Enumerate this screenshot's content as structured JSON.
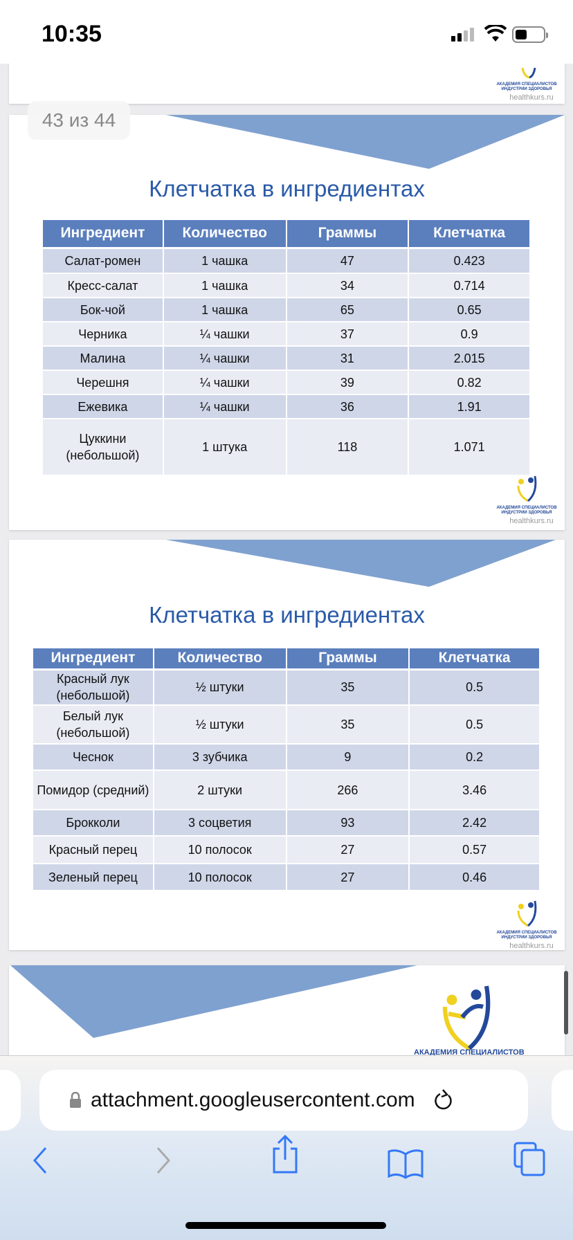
{
  "status_bar": {
    "time": "10:35"
  },
  "viewer": {
    "page_counter": "43 из 44"
  },
  "logo": {
    "line1": "АКАДЕМИЯ СПЕЦИАЛИСТОВ",
    "line2": "ИНДУСТРИИ ЗДОРОВЬЯ",
    "site": "healthkurs.ru"
  },
  "slides": [
    {
      "title": "Клетчатка в ингредиентах",
      "headers": [
        "Ингредиент",
        "Количество",
        "Граммы",
        "Клетчатка"
      ],
      "rows": [
        [
          "Салат-ромен",
          "1 чашка",
          "47",
          "0.423"
        ],
        [
          "Кресс-салат",
          "1 чашка",
          "34",
          "0.714"
        ],
        [
          "Бок-чой",
          "1 чашка",
          "65",
          "0.65"
        ],
        [
          "Черника",
          "¼ чашки",
          "37",
          "0.9"
        ],
        [
          "Малина",
          "¼ чашки",
          "31",
          "2.015"
        ],
        [
          "Черешня",
          "¼ чашки",
          "39",
          "0.82"
        ],
        [
          "Ежевика",
          "¼ чашки",
          "36",
          "1.91"
        ],
        [
          "Цуккини (небольшой)",
          "1 штука",
          "118",
          "1.071"
        ]
      ]
    },
    {
      "title": "Клетчатка в ингредиентах",
      "headers": [
        "Ингредиент",
        "Количество",
        "Граммы",
        "Клетчатка"
      ],
      "rows": [
        [
          "Красный лук (небольшой)",
          "½ штуки",
          "35",
          "0.5"
        ],
        [
          "Белый лук (небольшой)",
          "½ штуки",
          "35",
          "0.5"
        ],
        [
          "Чеснок",
          "3 зубчика",
          "9",
          "0.2"
        ],
        [
          "Помидор (средний)",
          "2 штуки",
          "266",
          "3.46"
        ],
        [
          "Брокколи",
          "3 соцветия",
          "93",
          "2.42"
        ],
        [
          "Красный перец",
          "10 полосок",
          "27",
          "0.57"
        ],
        [
          "Зеленый перец",
          "10 полосок",
          "27",
          "0.46"
        ]
      ]
    }
  ],
  "browser": {
    "url": "attachment.googleusercontent.com",
    "accent": "#3478f6"
  },
  "colors": {
    "header": "#5b7fbd",
    "row_dark": "#cfd6e8",
    "row_light": "#e9ecf3",
    "title": "#2a5aa8",
    "triangle": "#7fa1d0"
  }
}
